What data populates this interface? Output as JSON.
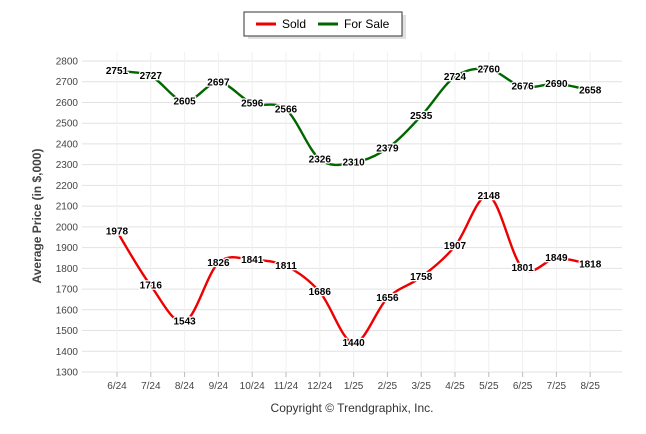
{
  "chart_data": {
    "type": "line",
    "categories": [
      "6/24",
      "7/24",
      "8/24",
      "9/24",
      "10/24",
      "11/24",
      "12/24",
      "1/25",
      "2/25",
      "3/25",
      "4/25",
      "5/25",
      "6/25",
      "7/25",
      "8/25"
    ],
    "series": [
      {
        "name": "Sold",
        "color": "#ee0000",
        "values": [
          1978,
          1716,
          1543,
          1826,
          1841,
          1811,
          1686,
          1440,
          1656,
          1758,
          1907,
          2148,
          1801,
          1849,
          1818
        ]
      },
      {
        "name": "For Sale",
        "color": "#006600",
        "values": [
          2751,
          2727,
          2605,
          2697,
          2596,
          2566,
          2326,
          2310,
          2379,
          2535,
          2724,
          2760,
          2676,
          2690,
          2658
        ]
      }
    ],
    "ylabel": "Average Price (in $,000)",
    "xlabel": "",
    "ylim": [
      1300,
      2800
    ],
    "yticks": [
      1300,
      1400,
      1500,
      1600,
      1700,
      1800,
      1900,
      2000,
      2100,
      2200,
      2300,
      2400,
      2500,
      2600,
      2700,
      2800
    ],
    "grid": true,
    "legend_position": "top-center",
    "credit": "Copyright © Trendgraphix, Inc."
  }
}
